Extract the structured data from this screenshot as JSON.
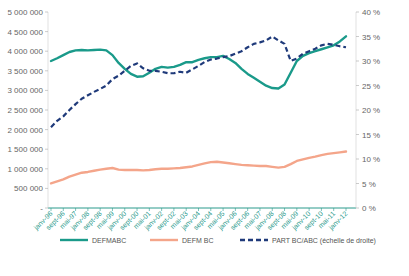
{
  "chart_data": {
    "type": "line",
    "categories": [
      "janv-96",
      null,
      "sept-96",
      null,
      "mai-97",
      null,
      "janv-98",
      null,
      "sept-98",
      null,
      "mai-99",
      null,
      "janv-00",
      null,
      "sept-00",
      null,
      "mai-01",
      null,
      "janv-02",
      null,
      "sept-02",
      null,
      "mai-03",
      null,
      "janv-04",
      null,
      "sept-04",
      null,
      "mai-05",
      null,
      "janv-06",
      null,
      "sept-06",
      null,
      "mai-07",
      null,
      "janv-08",
      null,
      "sept-08",
      null,
      "mai-09",
      null,
      "janv-10",
      null,
      "sept-10",
      null,
      "mai-11",
      null,
      "janv-12"
    ],
    "series": [
      {
        "name": "DEFMABC",
        "color": "#1a9a8a",
        "line_style": "solid",
        "values": [
          3750000,
          3820000,
          3900000,
          3980000,
          4020000,
          4030000,
          4020000,
          4030000,
          4040000,
          4020000,
          3900000,
          3700000,
          3550000,
          3420000,
          3350000,
          3360000,
          3450000,
          3550000,
          3600000,
          3580000,
          3600000,
          3650000,
          3720000,
          3720000,
          3780000,
          3820000,
          3850000,
          3850000,
          3880000,
          3800000,
          3700000,
          3550000,
          3420000,
          3320000,
          3220000,
          3120000,
          3060000,
          3050000,
          3150000,
          3450000,
          3750000,
          3880000,
          3950000,
          4000000,
          4050000,
          4100000,
          4150000,
          4250000,
          4380000
        ]
      },
      {
        "name": "DEFM BC",
        "color": "#f4a58a",
        "line_style": "solid",
        "values": [
          630000,
          680000,
          730000,
          800000,
          850000,
          900000,
          920000,
          950000,
          980000,
          1000000,
          1020000,
          980000,
          970000,
          970000,
          970000,
          960000,
          970000,
          990000,
          1000000,
          1000000,
          1010000,
          1020000,
          1040000,
          1060000,
          1100000,
          1140000,
          1170000,
          1180000,
          1160000,
          1140000,
          1120000,
          1100000,
          1090000,
          1080000,
          1070000,
          1070000,
          1050000,
          1030000,
          1050000,
          1120000,
          1200000,
          1240000,
          1280000,
          1310000,
          1350000,
          1380000,
          1400000,
          1420000,
          1440000
        ]
      },
      {
        "name": "PART BC/ABC (échelle de droite)",
        "color": "#1f3a7a",
        "line_style": "dashed",
        "axis": "y2",
        "values": [
          16.5,
          17.8,
          18.7,
          20,
          21.2,
          22.3,
          23,
          23.7,
          24.3,
          25,
          26.3,
          27,
          28,
          29,
          29.5,
          28.5,
          28,
          28,
          27.8,
          27.5,
          27.5,
          27.8,
          27.6,
          28.3,
          29,
          29.8,
          30.3,
          30.5,
          30.8,
          31,
          31.5,
          32,
          32.8,
          33.5,
          33.8,
          34.2,
          35,
          34.2,
          33.5,
          30,
          30.5,
          31.5,
          32,
          32.5,
          33.2,
          33.5,
          33.3,
          33,
          32.8
        ]
      }
    ],
    "ylim": [
      0,
      5000000
    ],
    "yticks": [
      {
        "value": 0,
        "label": "-"
      },
      {
        "value": 500000,
        "label": "500 000"
      },
      {
        "value": 1000000,
        "label": "1 000 000"
      },
      {
        "value": 1500000,
        "label": "1 500 000"
      },
      {
        "value": 2000000,
        "label": "2 000 000"
      },
      {
        "value": 2500000,
        "label": "2 500 000"
      },
      {
        "value": 3000000,
        "label": "3 000 000"
      },
      {
        "value": 3500000,
        "label": "3 500 000"
      },
      {
        "value": 4000000,
        "label": "4 000 000"
      },
      {
        "value": 4500000,
        "label": "4 500 000"
      },
      {
        "value": 5000000,
        "label": "5 000 000"
      }
    ],
    "y2lim": [
      0,
      40
    ],
    "y2ticks": [
      {
        "value": 0,
        "label": "0 %"
      },
      {
        "value": 5,
        "label": "5 %"
      },
      {
        "value": 10,
        "label": "10 %"
      },
      {
        "value": 15,
        "label": "15 %"
      },
      {
        "value": 20,
        "label": "20 %"
      },
      {
        "value": 25,
        "label": "25 %"
      },
      {
        "value": 30,
        "label": "30 %"
      },
      {
        "value": 35,
        "label": "35 %"
      },
      {
        "value": 40,
        "label": "40 %"
      }
    ],
    "grid": false,
    "legend": "bottom"
  }
}
